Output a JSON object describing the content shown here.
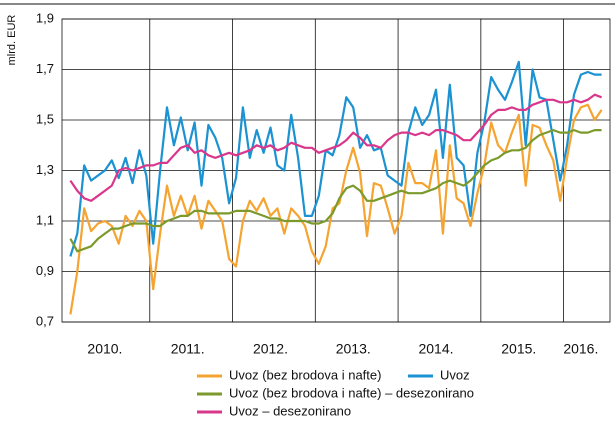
{
  "chart_data": {
    "type": "line",
    "y_label": "mlrd. EUR",
    "categories": [
      null,
      null,
      null,
      null,
      null,
      "2010.",
      null,
      null,
      null,
      null,
      null,
      null,
      null,
      null,
      null,
      null,
      null,
      "2011.",
      null,
      null,
      null,
      null,
      null,
      null,
      null,
      null,
      null,
      null,
      null,
      "2012.",
      null,
      null,
      null,
      null,
      null,
      null,
      null,
      null,
      null,
      null,
      null,
      "2013.",
      null,
      null,
      null,
      null,
      null,
      null,
      null,
      null,
      null,
      null,
      null,
      "2014.",
      null,
      null,
      null,
      null,
      null,
      null,
      null,
      null,
      null,
      null,
      null,
      "2015.",
      null,
      null,
      null,
      null,
      null,
      null,
      null,
      null,
      "2016.",
      null,
      null,
      null
    ],
    "ylim": [
      0.7,
      1.9
    ],
    "yticks": [
      {
        "value": 0.7,
        "label": "0,7"
      },
      {
        "value": 0.9,
        "label": "0,9"
      },
      {
        "value": 1.1,
        "label": "1,1"
      },
      {
        "value": 1.3,
        "label": "1,3"
      },
      {
        "value": 1.5,
        "label": "1,5"
      },
      {
        "value": 1.7,
        "label": "1,7"
      },
      {
        "value": 1.9,
        "label": "1,9"
      }
    ],
    "grid": true,
    "series": [
      {
        "name": "Uvoz (bez brodova i nafte)",
        "color": "#f5a431",
        "values": [
          0.73,
          0.9,
          1.15,
          1.06,
          1.09,
          1.1,
          1.08,
          1.01,
          1.12,
          1.08,
          1.14,
          1.1,
          0.83,
          1.05,
          1.24,
          1.12,
          1.2,
          1.12,
          1.2,
          1.07,
          1.18,
          1.14,
          1.1,
          0.95,
          0.92,
          1.1,
          1.18,
          1.14,
          1.19,
          1.12,
          1.15,
          1.05,
          1.15,
          1.12,
          1.08,
          0.98,
          0.93,
          1.0,
          1.15,
          1.17,
          1.3,
          1.39,
          1.29,
          1.04,
          1.25,
          1.24,
          1.15,
          1.05,
          1.12,
          1.33,
          1.25,
          1.25,
          1.23,
          1.38,
          1.05,
          1.4,
          1.19,
          1.17,
          1.08,
          1.21,
          1.32,
          1.49,
          1.4,
          1.37,
          1.45,
          1.52,
          1.24,
          1.48,
          1.47,
          1.4,
          1.34,
          1.18,
          1.35,
          1.5,
          1.55,
          1.56,
          1.5,
          1.54
        ]
      },
      {
        "name": "Uvoz",
        "color": "#1b92d1",
        "values": [
          0.96,
          1.05,
          1.32,
          1.26,
          1.28,
          1.3,
          1.34,
          1.27,
          1.35,
          1.25,
          1.38,
          1.28,
          1.01,
          1.3,
          1.55,
          1.4,
          1.51,
          1.38,
          1.49,
          1.24,
          1.48,
          1.43,
          1.35,
          1.17,
          1.27,
          1.55,
          1.35,
          1.46,
          1.37,
          1.47,
          1.32,
          1.3,
          1.52,
          1.35,
          1.12,
          1.12,
          1.2,
          1.38,
          1.36,
          1.44,
          1.59,
          1.55,
          1.39,
          1.44,
          1.38,
          1.39,
          1.28,
          1.26,
          1.24,
          1.45,
          1.55,
          1.48,
          1.52,
          1.62,
          1.35,
          1.64,
          1.35,
          1.32,
          1.12,
          1.37,
          1.49,
          1.67,
          1.62,
          1.58,
          1.65,
          1.73,
          1.4,
          1.7,
          1.59,
          1.58,
          1.42,
          1.26,
          1.4,
          1.6,
          1.68,
          1.69,
          1.68,
          1.68
        ]
      },
      {
        "name": "Uvoz (bez brodova i nafte) – desezonirano",
        "color": "#7b9a2b",
        "values": [
          1.03,
          0.98,
          0.99,
          1.0,
          1.03,
          1.05,
          1.07,
          1.07,
          1.08,
          1.09,
          1.09,
          1.09,
          1.08,
          1.08,
          1.1,
          1.11,
          1.12,
          1.12,
          1.14,
          1.14,
          1.13,
          1.13,
          1.13,
          1.13,
          1.14,
          1.14,
          1.14,
          1.13,
          1.12,
          1.11,
          1.11,
          1.1,
          1.1,
          1.1,
          1.1,
          1.09,
          1.09,
          1.1,
          1.13,
          1.19,
          1.23,
          1.24,
          1.22,
          1.18,
          1.18,
          1.19,
          1.2,
          1.21,
          1.22,
          1.21,
          1.21,
          1.21,
          1.22,
          1.23,
          1.25,
          1.26,
          1.25,
          1.24,
          1.26,
          1.29,
          1.32,
          1.34,
          1.35,
          1.37,
          1.38,
          1.38,
          1.39,
          1.42,
          1.44,
          1.45,
          1.46,
          1.45,
          1.45,
          1.46,
          1.45,
          1.45,
          1.46,
          1.46
        ]
      },
      {
        "name": "Uvoz – desezonirano",
        "color": "#d9378b",
        "values": [
          1.26,
          1.22,
          1.19,
          1.18,
          1.2,
          1.22,
          1.24,
          1.3,
          1.31,
          1.3,
          1.31,
          1.32,
          1.32,
          1.33,
          1.33,
          1.36,
          1.39,
          1.4,
          1.37,
          1.38,
          1.36,
          1.35,
          1.36,
          1.37,
          1.36,
          1.37,
          1.38,
          1.4,
          1.39,
          1.4,
          1.38,
          1.39,
          1.41,
          1.4,
          1.39,
          1.39,
          1.37,
          1.38,
          1.39,
          1.4,
          1.42,
          1.45,
          1.43,
          1.4,
          1.4,
          1.39,
          1.42,
          1.44,
          1.45,
          1.45,
          1.44,
          1.45,
          1.44,
          1.46,
          1.46,
          1.45,
          1.44,
          1.42,
          1.42,
          1.45,
          1.48,
          1.52,
          1.54,
          1.54,
          1.55,
          1.54,
          1.54,
          1.56,
          1.57,
          1.58,
          1.58,
          1.57,
          1.57,
          1.58,
          1.57,
          1.58,
          1.6,
          1.59
        ]
      }
    ]
  }
}
